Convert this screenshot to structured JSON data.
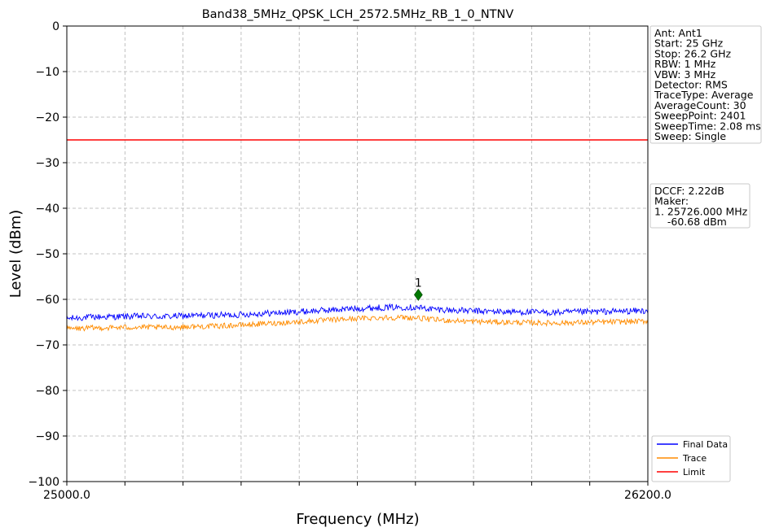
{
  "chart_data": {
    "type": "line",
    "title": "Band38_5MHz_QPSK_LCH_2572.5MHz_RB_1_0_NTNV",
    "xlabel": "Frequency (MHz)",
    "ylabel": "Level (dBm)",
    "xlim": [
      25000.0,
      26200.0
    ],
    "ylim": [
      -100,
      0
    ],
    "x_tick_labels": [
      {
        "value": 25000.0,
        "label": "25000.0"
      },
      {
        "value": 26200.0,
        "label": "26200.0"
      }
    ],
    "x_minor_gridlines": [
      25120,
      25240,
      25360,
      25480,
      25600,
      25720,
      25840,
      25960,
      26080
    ],
    "y_ticks": [
      0,
      -10,
      -20,
      -30,
      -40,
      -50,
      -60,
      -70,
      -80,
      -90,
      -100
    ],
    "y_tick_labels": [
      "0",
      "−10",
      "−20",
      "−30",
      "−40",
      "−50",
      "−60",
      "−70",
      "−80",
      "−90",
      "−100"
    ],
    "grid": true,
    "legend_position": "bottom-right",
    "series": [
      {
        "name": "Final Data",
        "color": "#0000ff",
        "x": [
          25000,
          25050,
          25100,
          25150,
          25200,
          25250,
          25300,
          25350,
          25400,
          25450,
          25500,
          25550,
          25600,
          25650,
          25700,
          25726,
          25750,
          25800,
          25850,
          25900,
          25950,
          26000,
          26050,
          26100,
          26150,
          26200
        ],
        "values": [
          -64.2,
          -63.9,
          -63.8,
          -63.7,
          -63.8,
          -63.6,
          -63.5,
          -63.4,
          -63.1,
          -62.9,
          -62.6,
          -62.3,
          -62.0,
          -61.8,
          -61.7,
          -61.8,
          -62.1,
          -62.4,
          -62.6,
          -62.7,
          -62.8,
          -62.9,
          -62.8,
          -62.7,
          -62.6,
          -62.5
        ],
        "noise": 0.7
      },
      {
        "name": "Trace",
        "color": "#ff8c00",
        "x": [
          25000,
          25050,
          25100,
          25150,
          25200,
          25250,
          25300,
          25350,
          25400,
          25450,
          25500,
          25550,
          25600,
          25650,
          25700,
          25726,
          25750,
          25800,
          25850,
          25900,
          25950,
          26000,
          26050,
          26100,
          26150,
          26200
        ],
        "values": [
          -66.5,
          -66.3,
          -66.2,
          -66.1,
          -66.2,
          -66.0,
          -65.9,
          -65.7,
          -65.4,
          -65.1,
          -64.8,
          -64.5,
          -64.2,
          -64.0,
          -64.0,
          -64.1,
          -64.4,
          -64.7,
          -64.9,
          -65.0,
          -65.1,
          -65.2,
          -65.1,
          -65.0,
          -64.9,
          -64.8
        ],
        "noise": 0.6
      },
      {
        "name": "Limit",
        "color": "#ff0000",
        "x": [
          25000,
          26200
        ],
        "values": [
          -25,
          -25
        ]
      }
    ],
    "marker": {
      "label": "1",
      "x": 25726.0,
      "y": -59.0,
      "color": "#007700"
    },
    "info_box_1": [
      "Ant: Ant1",
      "Start: 25 GHz",
      "Stop: 26.2 GHz",
      "RBW: 1 MHz",
      "VBW: 3 MHz",
      "Detector: RMS",
      "TraceType: Average",
      "AverageCount: 30",
      "SweepPoint: 2401",
      "SweepTime: 2.08 ms",
      "Sweep: Single"
    ],
    "info_box_2": [
      "DCCF: 2.22dB",
      "Maker:",
      "1. 25726.000 MHz",
      "    -60.68 dBm"
    ]
  }
}
